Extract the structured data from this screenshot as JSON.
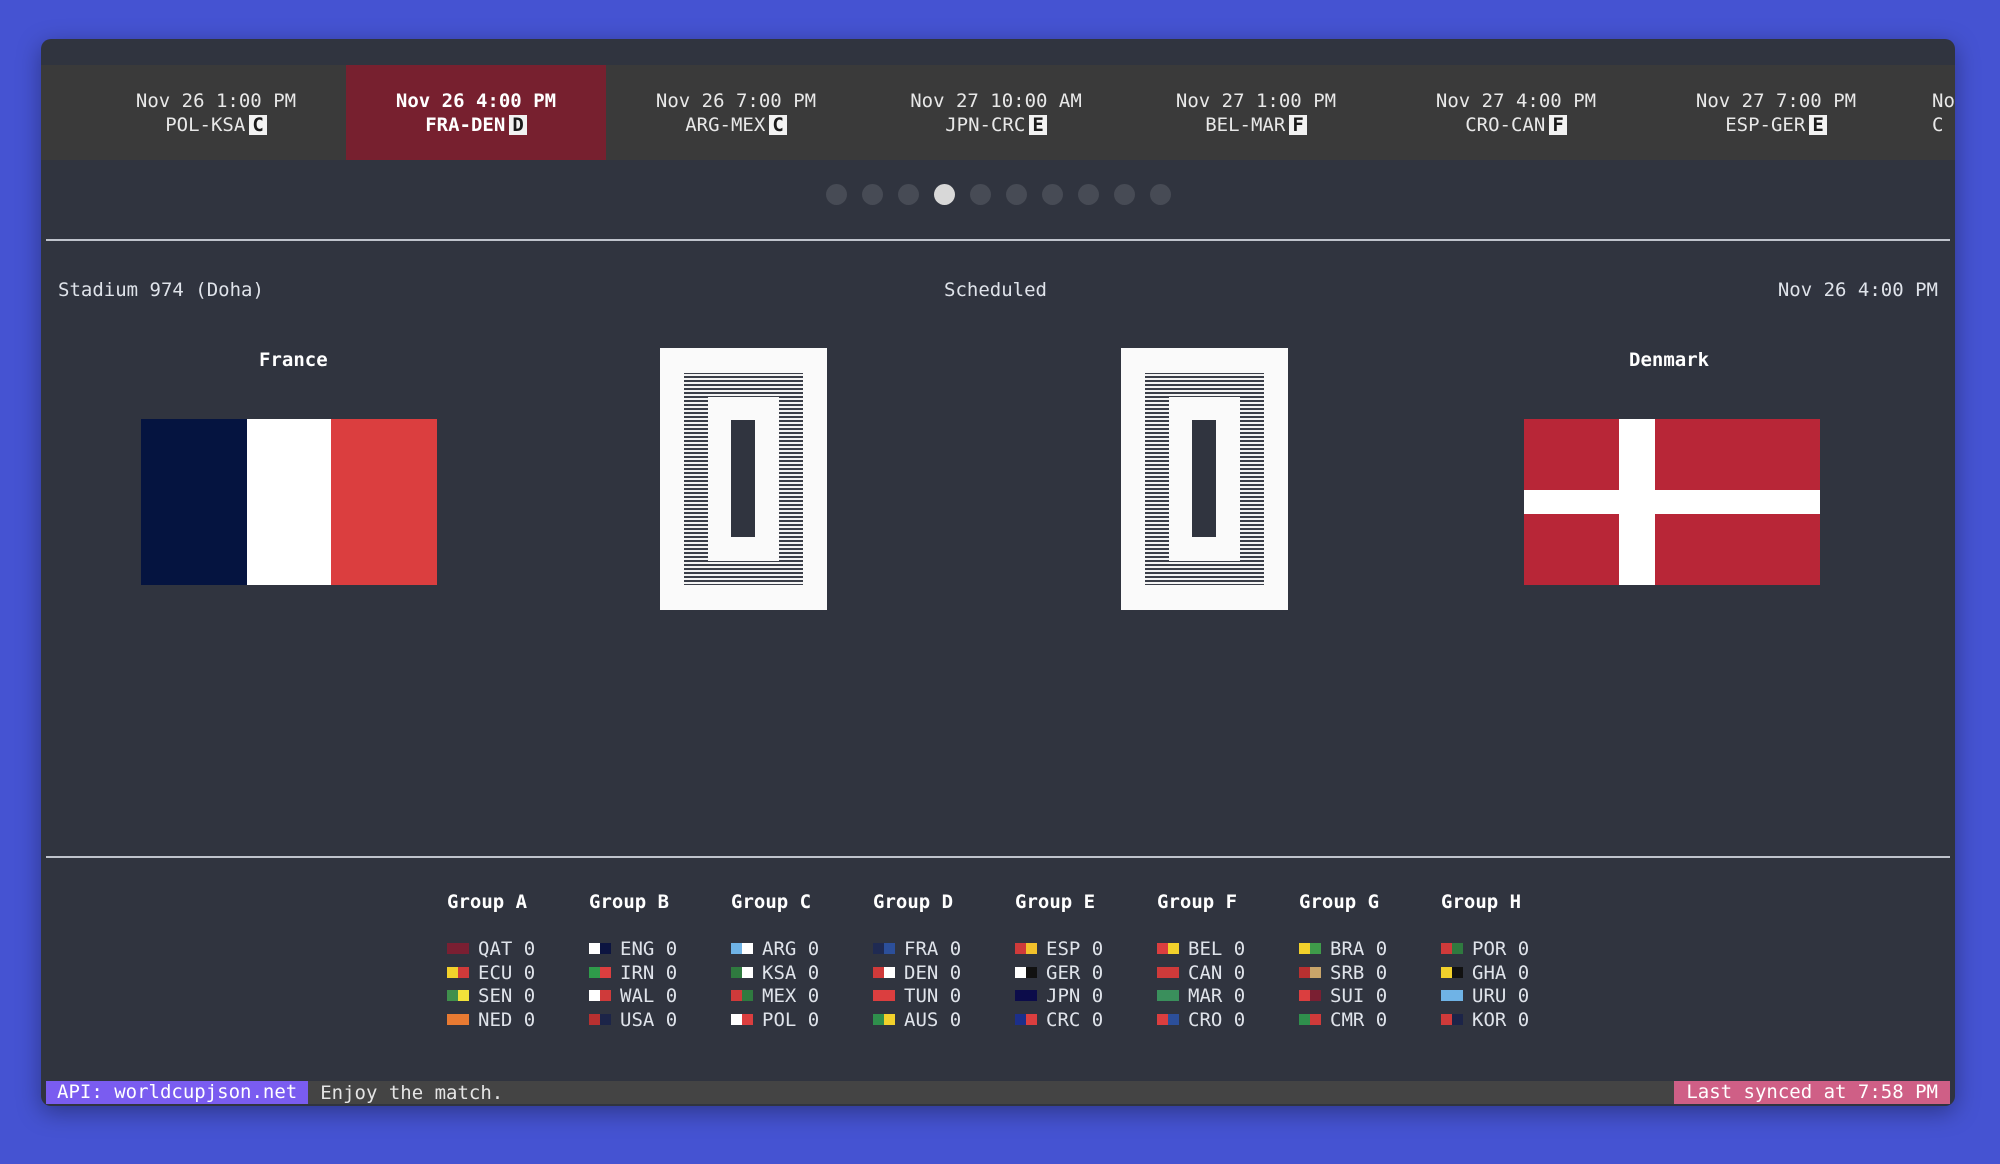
{
  "tabs": [
    {
      "time": "Nov 26 1:00 PM",
      "match": "POL-KSA",
      "group": "C"
    },
    {
      "time": "Nov 26 4:00 PM",
      "match": "FRA-DEN",
      "group": "D",
      "active": true
    },
    {
      "time": "Nov 26 7:00 PM",
      "match": "ARG-MEX",
      "group": "C"
    },
    {
      "time": "Nov 27 10:00 AM",
      "match": "JPN-CRC",
      "group": "E"
    },
    {
      "time": "Nov 27 1:00 PM",
      "match": "BEL-MAR",
      "group": "F"
    },
    {
      "time": "Nov 27 4:00 PM",
      "match": "CRO-CAN",
      "group": "F"
    },
    {
      "time": "Nov 27 7:00 PM",
      "match": "ESP-GER",
      "group": "E"
    },
    {
      "time": "Nov",
      "match": "C",
      "group": ""
    }
  ],
  "pager": {
    "count": 10,
    "active_index": 3
  },
  "match": {
    "venue": "Stadium 974 (Doha)",
    "status": "Scheduled",
    "datetime": "Nov 26 4:00 PM",
    "home": {
      "name": "France",
      "score": "0"
    },
    "away": {
      "name": "Denmark",
      "score": "0"
    }
  },
  "colors": {
    "france_blue": "#051440",
    "france_white": "#ffffff",
    "france_red": "#db3e3f",
    "denmark_red": "#b82637",
    "denmark_white": "#ffffff"
  },
  "groups": [
    {
      "name": "Group A",
      "teams": [
        {
          "code": "QAT",
          "pts": "0",
          "c": [
            "#7a1f32",
            "#7a1f32"
          ]
        },
        {
          "code": "ECU",
          "pts": "0",
          "c": [
            "#f2d12b",
            "#cf3a3a"
          ]
        },
        {
          "code": "SEN",
          "pts": "0",
          "c": [
            "#3f8f4c",
            "#f2e23a"
          ]
        },
        {
          "code": "NED",
          "pts": "0",
          "c": [
            "#e87a32",
            "#e87a32"
          ]
        }
      ]
    },
    {
      "name": "Group B",
      "teams": [
        {
          "code": "ENG",
          "pts": "0",
          "c": [
            "#ffffff",
            "#0c1440"
          ]
        },
        {
          "code": "IRN",
          "pts": "0",
          "c": [
            "#2f9b4a",
            "#db3e3f"
          ]
        },
        {
          "code": "WAL",
          "pts": "0",
          "c": [
            "#ffffff",
            "#cf3a3a"
          ]
        },
        {
          "code": "USA",
          "pts": "0",
          "c": [
            "#b83030",
            "#1c2448"
          ]
        }
      ]
    },
    {
      "name": "Group C",
      "teams": [
        {
          "code": "ARG",
          "pts": "0",
          "c": [
            "#6fb3e6",
            "#ffffff"
          ]
        },
        {
          "code": "KSA",
          "pts": "0",
          "c": [
            "#2f7a3f",
            "#ffffff"
          ]
        },
        {
          "code": "MEX",
          "pts": "0",
          "c": [
            "#cf3a3a",
            "#2f7a3f"
          ]
        },
        {
          "code": "POL",
          "pts": "0",
          "c": [
            "#ffffff",
            "#db3e3f"
          ]
        }
      ]
    },
    {
      "name": "Group D",
      "teams": [
        {
          "code": "FRA",
          "pts": "0",
          "c": [
            "#1f2a52",
            "#2c4f9a"
          ]
        },
        {
          "code": "DEN",
          "pts": "0",
          "c": [
            "#cf3a3a",
            "#ffffff"
          ]
        },
        {
          "code": "TUN",
          "pts": "0",
          "c": [
            "#db3e3f",
            "#db3e3f"
          ]
        },
        {
          "code": "AUS",
          "pts": "0",
          "c": [
            "#2f8f4c",
            "#f2d12b"
          ]
        }
      ]
    },
    {
      "name": "Group E",
      "teams": [
        {
          "code": "ESP",
          "pts": "0",
          "c": [
            "#cf3a3a",
            "#f2c12b"
          ]
        },
        {
          "code": "GER",
          "pts": "0",
          "c": [
            "#ffffff",
            "#111111"
          ]
        },
        {
          "code": "JPN",
          "pts": "0",
          "c": [
            "#0c0c4a",
            "#0c0c4a"
          ]
        },
        {
          "code": "CRC",
          "pts": "0",
          "c": [
            "#1c2f8a",
            "#db3e3f"
          ]
        }
      ]
    },
    {
      "name": "Group F",
      "teams": [
        {
          "code": "BEL",
          "pts": "0",
          "c": [
            "#db3e3f",
            "#f2d12b"
          ]
        },
        {
          "code": "CAN",
          "pts": "0",
          "c": [
            "#cf3a3a",
            "#cf3a3a"
          ]
        },
        {
          "code": "MAR",
          "pts": "0",
          "c": [
            "#3a8f5c",
            "#3a8f5c"
          ]
        },
        {
          "code": "CRO",
          "pts": "0",
          "c": [
            "#db3e3f",
            "#2c4f9a"
          ]
        }
      ]
    },
    {
      "name": "Group G",
      "teams": [
        {
          "code": "BRA",
          "pts": "0",
          "c": [
            "#f2d12b",
            "#3f9b4a"
          ]
        },
        {
          "code": "SRB",
          "pts": "0",
          "c": [
            "#b83030",
            "#c9a56a"
          ]
        },
        {
          "code": "SUI",
          "pts": "0",
          "c": [
            "#db3e3f",
            "#7a1f32"
          ]
        },
        {
          "code": "CMR",
          "pts": "0",
          "c": [
            "#2f8f4c",
            "#cf3a3a"
          ]
        }
      ]
    },
    {
      "name": "Group H",
      "teams": [
        {
          "code": "POR",
          "pts": "0",
          "c": [
            "#cf3a3a",
            "#2f7a3f"
          ]
        },
        {
          "code": "GHA",
          "pts": "0",
          "c": [
            "#f2d12b",
            "#111111"
          ]
        },
        {
          "code": "URU",
          "pts": "0",
          "c": [
            "#6fb3e6",
            "#6fb3e6"
          ]
        },
        {
          "code": "KOR",
          "pts": "0",
          "c": [
            "#cf3a3a",
            "#1c2448"
          ]
        }
      ]
    }
  ],
  "status_bar": {
    "api": "API: worldcupjson.net",
    "message": "Enjoy the match.",
    "sync": "Last synced at 7:58 PM"
  }
}
